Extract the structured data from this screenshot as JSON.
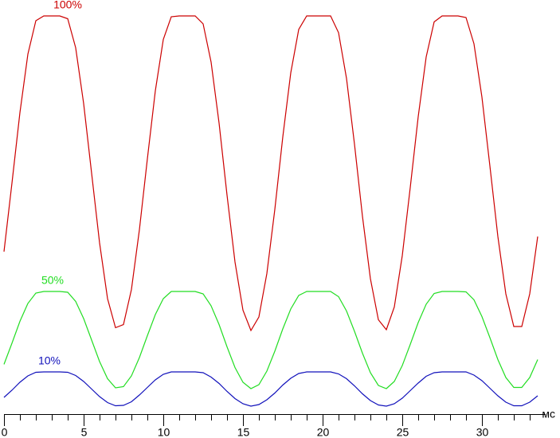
{
  "chart_data": {
    "type": "line",
    "xlabel": "мс",
    "x": [
      0,
      0.5,
      1,
      1.5,
      2,
      2.5,
      3,
      3.5,
      4,
      4.5,
      5,
      5.5,
      6,
      6.5,
      7,
      7.5,
      8,
      8.5,
      9,
      9.5,
      10,
      10.5,
      11,
      11.5,
      12,
      12.5,
      13,
      13.5,
      14,
      14.5,
      15,
      15.5,
      16,
      16.5,
      17,
      17.5,
      18,
      18.5,
      19,
      19.5,
      20,
      20.5,
      21,
      21.5,
      22,
      22.5,
      23,
      23.5,
      24,
      24.5,
      25,
      25.5,
      26,
      26.5,
      27,
      27.5,
      28,
      28.5,
      29,
      29.5,
      30,
      30.5,
      31,
      31.5,
      32,
      32.5,
      33,
      33.5
    ],
    "series": [
      {
        "name": "100%",
        "color": "#cc0000",
        "values": [
          40.8,
          58.0,
          75.7,
          90.4,
          98.8,
          100,
          100,
          100,
          99.3,
          92.0,
          78.0,
          60.5,
          43.0,
          29.0,
          21.7,
          22.5,
          31.3,
          46.3,
          64.1,
          81.2,
          94.1,
          99.8,
          100,
          100,
          100,
          98.0,
          88.4,
          73.1,
          55.0,
          38.2,
          26.1,
          21.0,
          24.4,
          35.3,
          51.4,
          69.6,
          85.7,
          96.6,
          100,
          100,
          100,
          100,
          95.8,
          84.3,
          67.8,
          49.7,
          34.0,
          23.7,
          21.2,
          26.9,
          39.8,
          56.9,
          74.7,
          89.7,
          98.5,
          100,
          100,
          100,
          99.6,
          93.0,
          79.6,
          62.3,
          44.6,
          30.2,
          22.0,
          22.0,
          30.2,
          44.6
        ]
      },
      {
        "name": "50%",
        "color": "#22dd22",
        "values": [
          12.5,
          17.8,
          23.3,
          27.8,
          30.4,
          30.8,
          30.8,
          30.8,
          30.6,
          28.3,
          24.0,
          18.6,
          13.2,
          8.9,
          6.6,
          6.9,
          9.6,
          14.2,
          19.7,
          25.0,
          29.0,
          30.8,
          30.8,
          30.8,
          30.8,
          30.2,
          27.2,
          22.5,
          16.9,
          11.7,
          8.0,
          6.4,
          7.4,
          10.8,
          15.8,
          21.4,
          26.4,
          29.8,
          30.8,
          30.8,
          30.8,
          30.8,
          29.5,
          25.9,
          20.8,
          15.3,
          10.4,
          7.2,
          6.4,
          8.2,
          12.2,
          17.5,
          23.0,
          27.6,
          30.3,
          30.8,
          30.8,
          30.8,
          30.7,
          28.7,
          24.5,
          19.2,
          13.7,
          9.2,
          6.7,
          6.7,
          9.2,
          13.7
        ]
      },
      {
        "name": "10%",
        "color": "#1111bb",
        "values": [
          4.2,
          6.0,
          8.0,
          9.6,
          10.5,
          10.6,
          10.6,
          10.6,
          10.5,
          9.7,
          8.2,
          6.3,
          4.4,
          2.9,
          2.1,
          2.2,
          3.1,
          4.8,
          6.7,
          8.6,
          10.0,
          10.6,
          10.6,
          10.6,
          10.6,
          10.4,
          9.3,
          7.7,
          5.7,
          3.9,
          2.6,
          2.0,
          2.4,
          3.6,
          5.3,
          7.3,
          9.0,
          10.2,
          10.6,
          10.6,
          10.6,
          10.6,
          10.1,
          8.9,
          7.1,
          5.1,
          3.4,
          2.3,
          2.0,
          2.6,
          4.0,
          5.9,
          7.8,
          9.5,
          10.4,
          10.6,
          10.6,
          10.6,
          10.6,
          9.8,
          8.4,
          6.5,
          4.6,
          3.0,
          2.1,
          2.1,
          3.0,
          4.6
        ]
      }
    ],
    "xlim": [
      0,
      34
    ],
    "ylim": [
      0,
      100
    ],
    "xticks": [
      0,
      5,
      10,
      15,
      20,
      25,
      30
    ],
    "xminorticks": [
      1,
      2,
      3,
      4,
      6,
      7,
      8,
      9,
      11,
      12,
      13,
      14,
      16,
      17,
      18,
      19,
      21,
      22,
      23,
      24,
      26,
      27,
      28,
      29,
      31,
      32,
      33
    ],
    "grid": false
  }
}
